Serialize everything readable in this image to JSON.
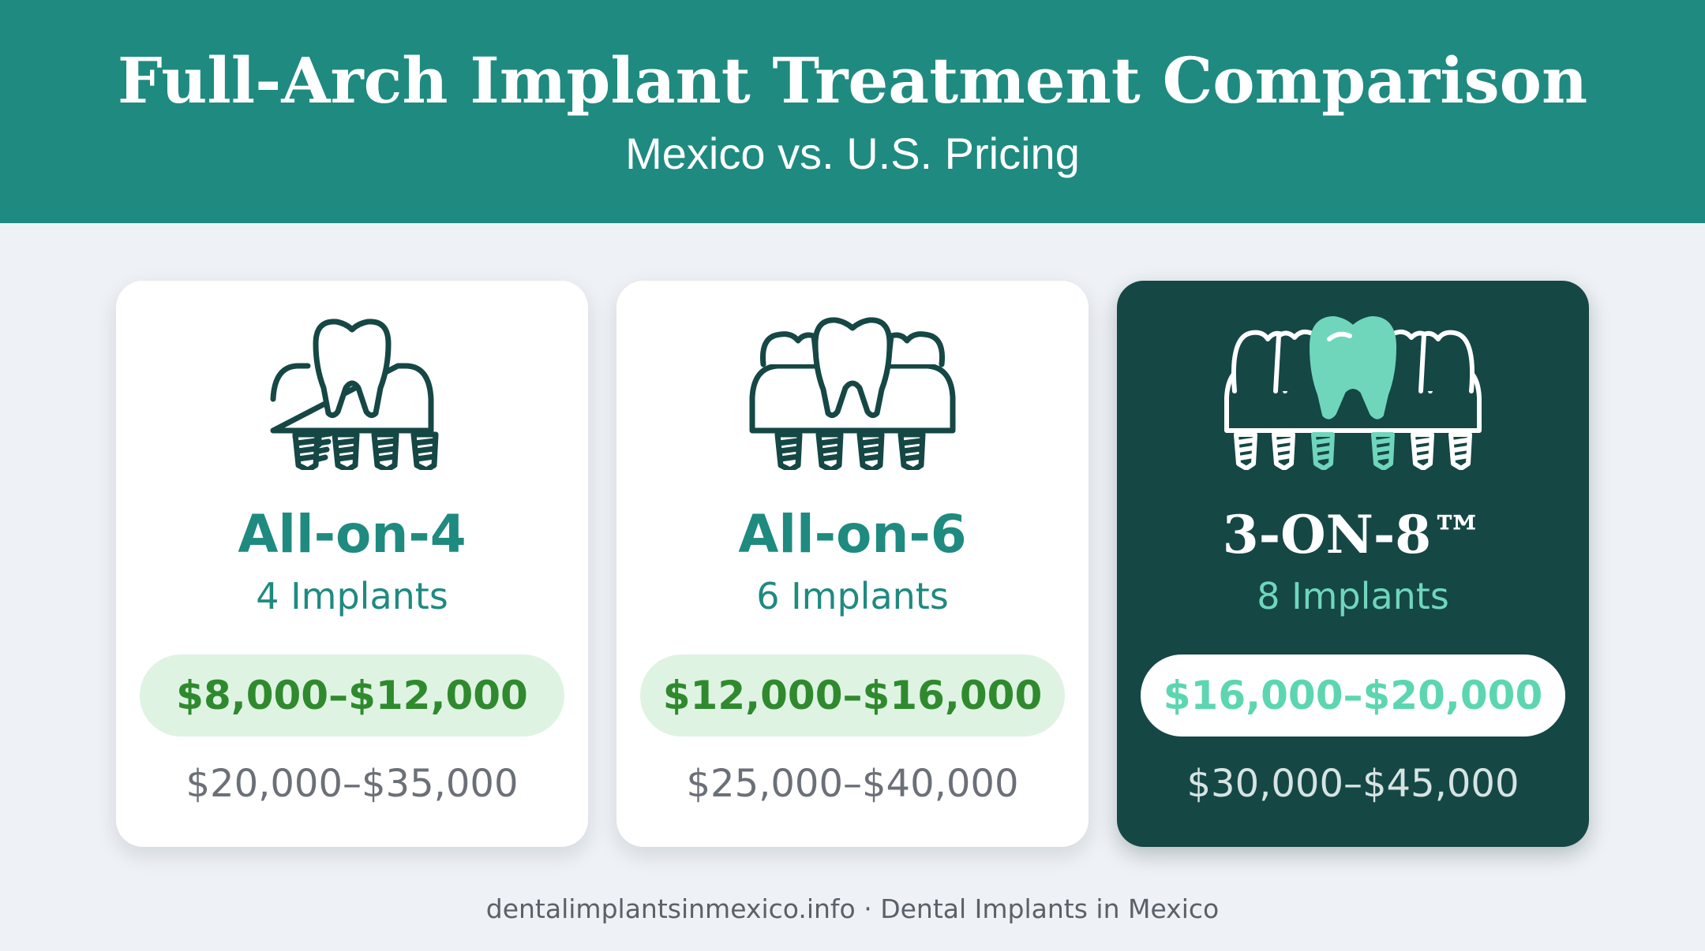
{
  "header": {
    "title": "Full-Arch Implant Treatment Comparison",
    "subtitle": "Mexico vs. U.S. Pricing",
    "background_color": "#1f8a80"
  },
  "cards": [
    {
      "name": "All-on-4",
      "implants": "4 Implants",
      "mexico_price": "$8,000–$12,000",
      "us_price": "$20,000–$35,000",
      "icon": "full-arch-4-implants-icon",
      "highlighted": false
    },
    {
      "name": "All-on-6",
      "implants": "6 Implants",
      "mexico_price": "$12,000–$16,000",
      "us_price": "$25,000–$40,000",
      "icon": "full-arch-6-implants-icon",
      "highlighted": false
    },
    {
      "name": "3-ON-8™",
      "implants": "8 Implants",
      "mexico_price": "$16,000–$20,000",
      "us_price": "$30,000–$45,000",
      "icon": "full-arch-8-implants-icon",
      "highlighted": true
    }
  ],
  "colors": {
    "teal": "#1f8a80",
    "dark_card": "#154745",
    "mint_accent": "#5cd6b0",
    "green_price": "#2f8a2e",
    "price_pill_bg": "#dff3e3",
    "page_bg": "#eef1f5"
  },
  "footer": {
    "text": "dentalimplantsinmexico.info · Dental Implants in Mexico"
  }
}
